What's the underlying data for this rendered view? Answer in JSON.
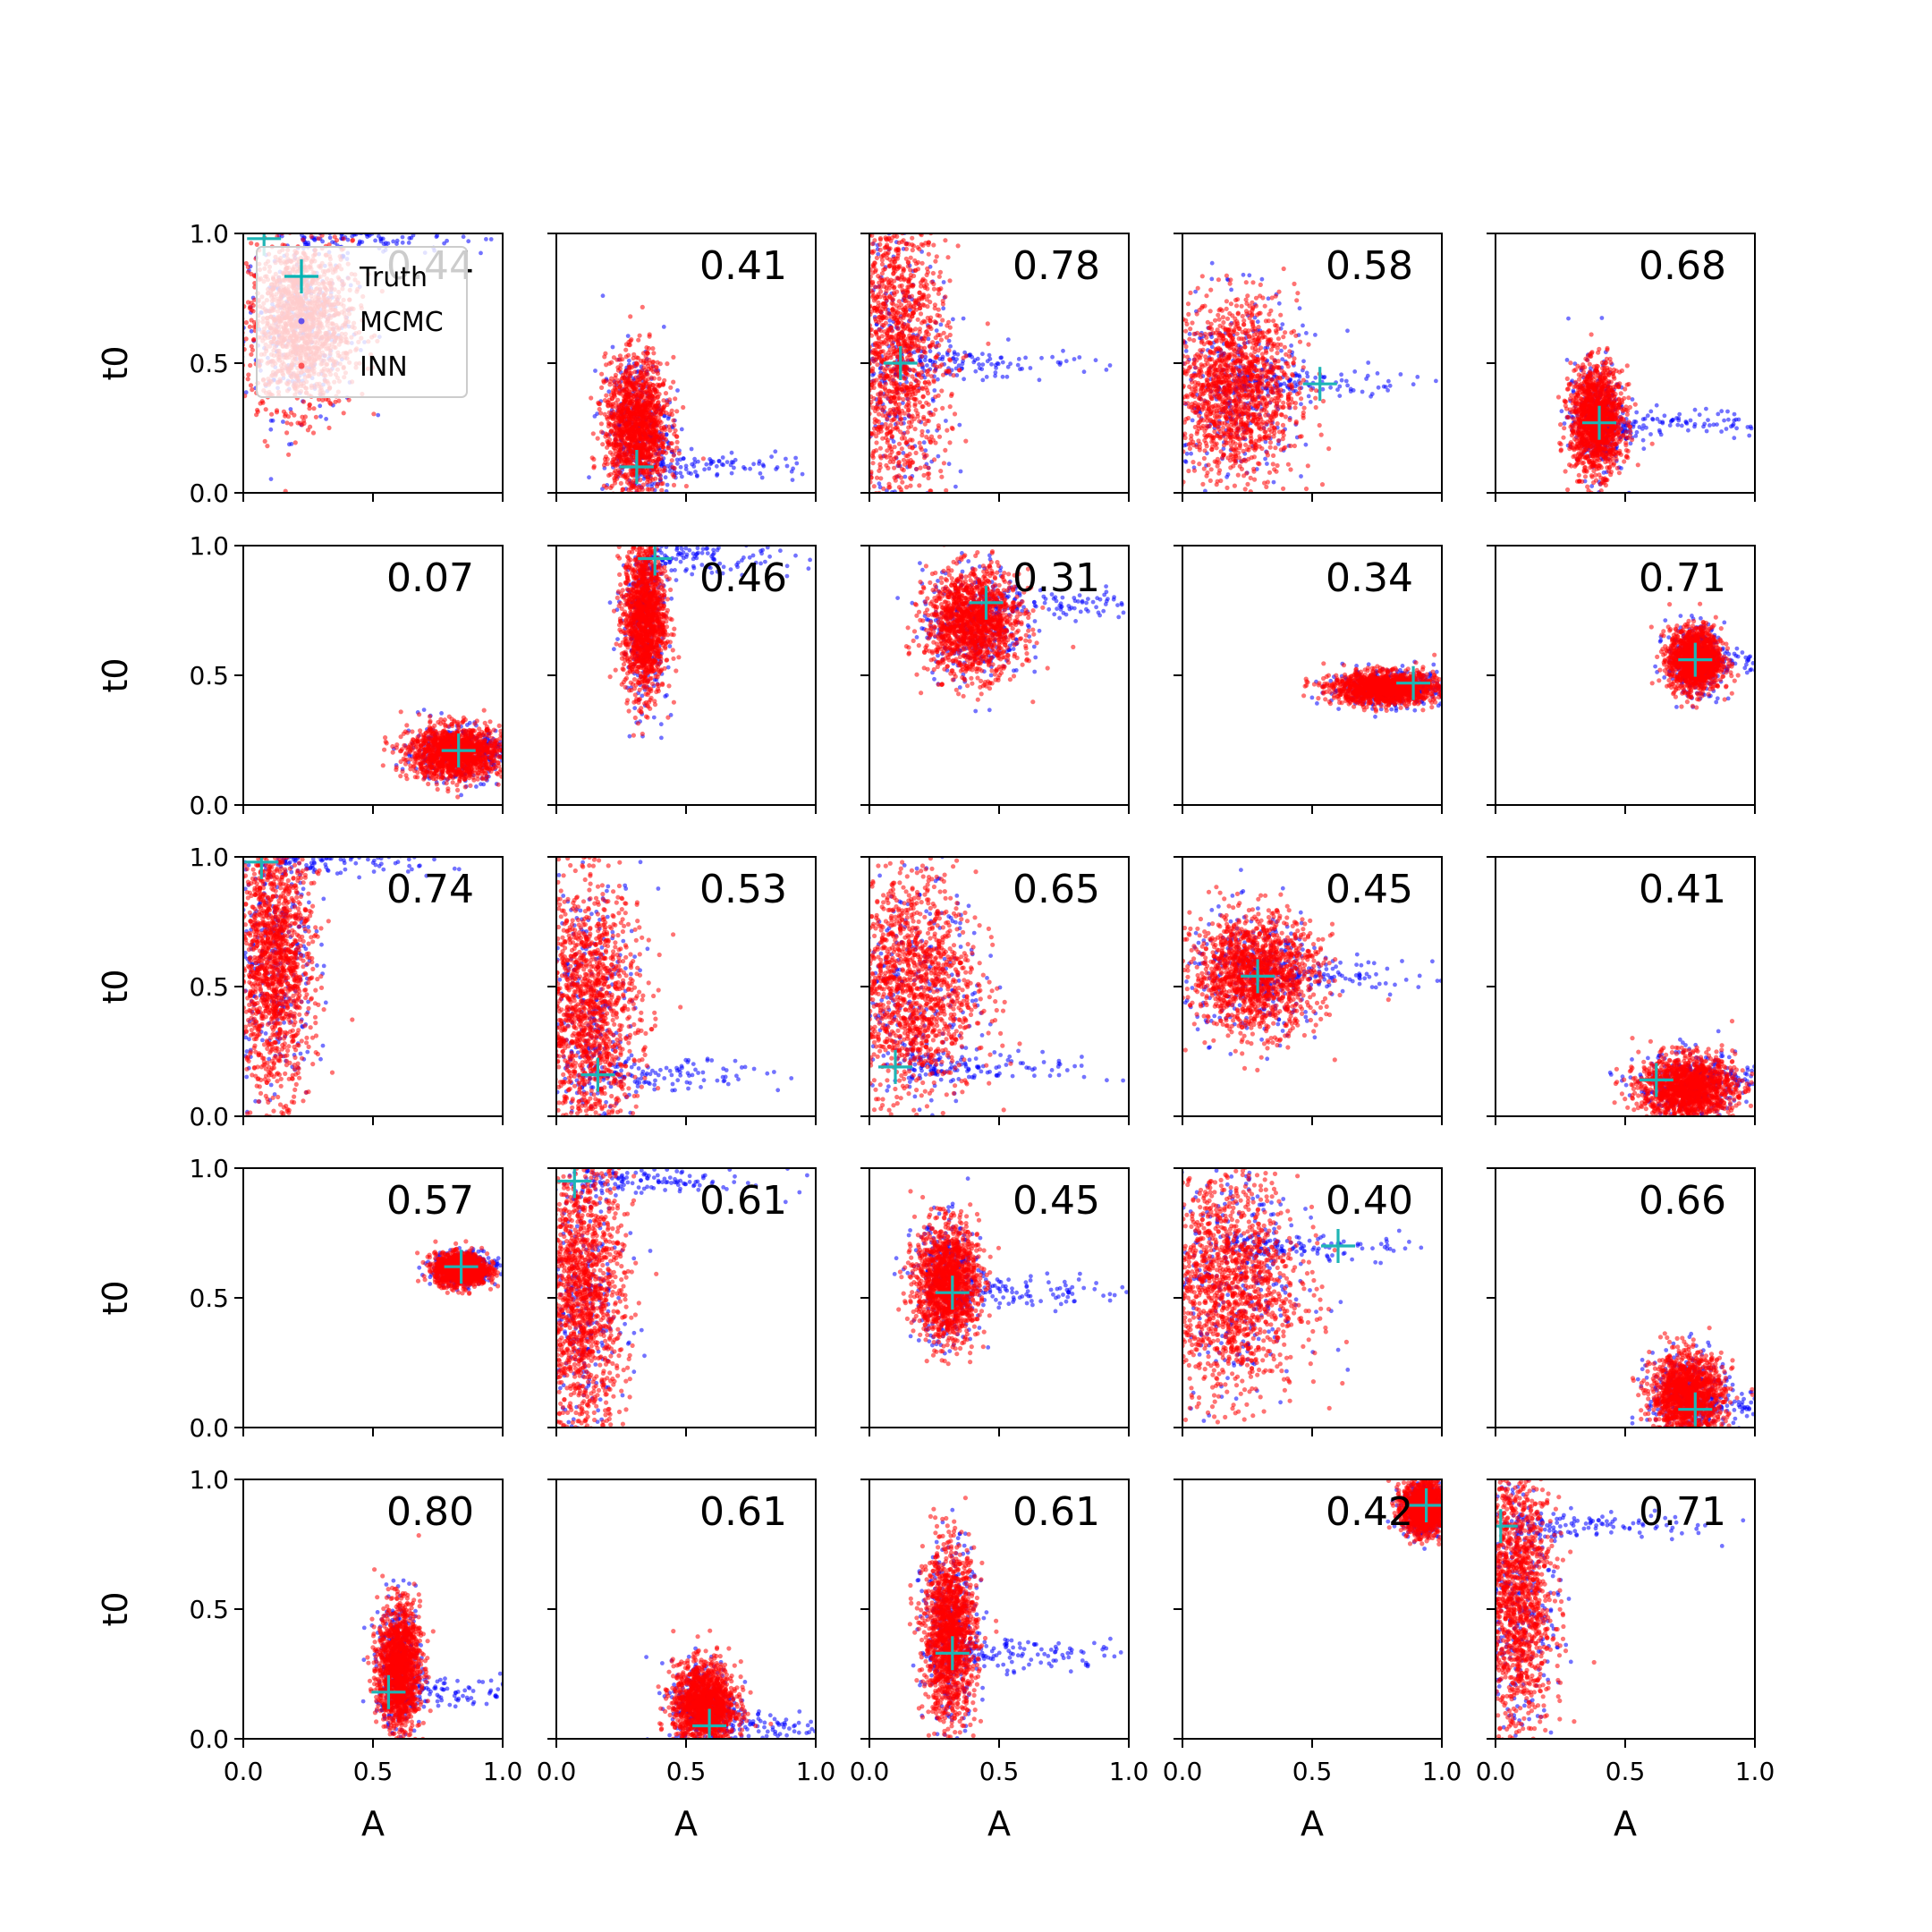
{
  "chart_data": {
    "type": "scatter",
    "layout": {
      "rows": 5,
      "cols": 5
    },
    "xlabel": "A",
    "ylabel": "t0",
    "xlim": [
      0,
      1
    ],
    "ylim": [
      0,
      1
    ],
    "xticks": [
      "0.0",
      "0.5",
      "1.0"
    ],
    "yticks": [
      "0.0",
      "0.5",
      "1.0"
    ],
    "legend": {
      "placement": "top-left of first panel",
      "entries": [
        {
          "label": "Truth",
          "color": "#00b3b3",
          "marker": "plus"
        },
        {
          "label": "MCMC",
          "color": "#0000ff",
          "marker": "dot"
        },
        {
          "label": "INN",
          "color": "#ff0000",
          "marker": "dot"
        }
      ]
    },
    "colors": {
      "truth": "#1fb5b5",
      "mcmc": "#0000ff",
      "inn": "#ff0000"
    },
    "panels": [
      {
        "value": "0.44",
        "truth": [
          0.08,
          0.98
        ],
        "inn": {
          "cx": 0.22,
          "cy": 0.65,
          "sx": 0.1,
          "sy": 0.16
        }
      },
      {
        "value": "0.41",
        "truth": [
          0.31,
          0.1
        ],
        "inn": {
          "cx": 0.31,
          "cy": 0.25,
          "sx": 0.06,
          "sy": 0.13
        }
      },
      {
        "value": "0.78",
        "truth": [
          0.12,
          0.5
        ],
        "inn": {
          "cx": 0.1,
          "cy": 0.55,
          "sx": 0.1,
          "sy": 0.3
        }
      },
      {
        "value": "0.58",
        "truth": [
          0.53,
          0.42
        ],
        "inn": {
          "cx": 0.2,
          "cy": 0.4,
          "sx": 0.12,
          "sy": 0.17
        }
      },
      {
        "value": "0.68",
        "truth": [
          0.4,
          0.27
        ],
        "inn": {
          "cx": 0.39,
          "cy": 0.28,
          "sx": 0.05,
          "sy": 0.1
        }
      },
      {
        "value": "0.07",
        "truth": [
          0.83,
          0.21
        ],
        "inn": {
          "cx": 0.82,
          "cy": 0.2,
          "sx": 0.09,
          "sy": 0.05
        }
      },
      {
        "value": "0.46",
        "truth": [
          0.38,
          0.95
        ],
        "inn": {
          "cx": 0.34,
          "cy": 0.72,
          "sx": 0.04,
          "sy": 0.15
        }
      },
      {
        "value": "0.31",
        "truth": [
          0.45,
          0.78
        ],
        "inn": {
          "cx": 0.4,
          "cy": 0.7,
          "sx": 0.09,
          "sy": 0.1
        }
      },
      {
        "value": "0.34",
        "truth": [
          0.89,
          0.47
        ],
        "inn": {
          "cx": 0.78,
          "cy": 0.45,
          "sx": 0.1,
          "sy": 0.03
        }
      },
      {
        "value": "0.71",
        "truth": [
          0.77,
          0.56
        ],
        "inn": {
          "cx": 0.77,
          "cy": 0.56,
          "sx": 0.05,
          "sy": 0.06
        }
      },
      {
        "value": "0.74",
        "truth": [
          0.07,
          0.98
        ],
        "inn": {
          "cx": 0.12,
          "cy": 0.6,
          "sx": 0.07,
          "sy": 0.25
        }
      },
      {
        "value": "0.53",
        "truth": [
          0.16,
          0.16
        ],
        "inn": {
          "cx": 0.12,
          "cy": 0.4,
          "sx": 0.1,
          "sy": 0.25
        }
      },
      {
        "value": "0.65",
        "truth": [
          0.1,
          0.19
        ],
        "inn": {
          "cx": 0.15,
          "cy": 0.5,
          "sx": 0.13,
          "sy": 0.22
        }
      },
      {
        "value": "0.45",
        "truth": [
          0.29,
          0.54
        ],
        "inn": {
          "cx": 0.28,
          "cy": 0.55,
          "sx": 0.12,
          "sy": 0.11
        }
      },
      {
        "value": "0.41",
        "truth": [
          0.62,
          0.14
        ],
        "inn": {
          "cx": 0.74,
          "cy": 0.11,
          "sx": 0.09,
          "sy": 0.06
        }
      },
      {
        "value": "0.57",
        "truth": [
          0.84,
          0.62
        ],
        "inn": {
          "cx": 0.84,
          "cy": 0.61,
          "sx": 0.05,
          "sy": 0.03
        }
      },
      {
        "value": "0.61",
        "truth": [
          0.07,
          0.95
        ],
        "inn": {
          "cx": 0.1,
          "cy": 0.5,
          "sx": 0.08,
          "sy": 0.27
        }
      },
      {
        "value": "0.45",
        "truth": [
          0.32,
          0.52
        ],
        "inn": {
          "cx": 0.3,
          "cy": 0.56,
          "sx": 0.06,
          "sy": 0.11
        }
      },
      {
        "value": "0.40",
        "truth": [
          0.6,
          0.7
        ],
        "inn": {
          "cx": 0.17,
          "cy": 0.55,
          "sx": 0.14,
          "sy": 0.22
        }
      },
      {
        "value": "0.66",
        "truth": [
          0.77,
          0.07
        ],
        "inn": {
          "cx": 0.74,
          "cy": 0.12,
          "sx": 0.07,
          "sy": 0.08
        }
      },
      {
        "value": "0.80",
        "truth": [
          0.56,
          0.18
        ],
        "inn": {
          "cx": 0.6,
          "cy": 0.27,
          "sx": 0.04,
          "sy": 0.12
        }
      },
      {
        "value": "0.61",
        "truth": [
          0.59,
          0.05
        ],
        "inn": {
          "cx": 0.57,
          "cy": 0.13,
          "sx": 0.06,
          "sy": 0.08
        }
      },
      {
        "value": "0.61",
        "truth": [
          0.32,
          0.33
        ],
        "inn": {
          "cx": 0.31,
          "cy": 0.4,
          "sx": 0.05,
          "sy": 0.16
        }
      },
      {
        "value": "0.42",
        "truth": [
          0.94,
          0.9
        ],
        "inn": {
          "cx": 0.93,
          "cy": 0.89,
          "sx": 0.04,
          "sy": 0.05
        }
      },
      {
        "value": "0.71",
        "truth": [
          0.02,
          0.82
        ],
        "inn": {
          "cx": 0.08,
          "cy": 0.55,
          "sx": 0.07,
          "sy": 0.28
        }
      }
    ]
  }
}
